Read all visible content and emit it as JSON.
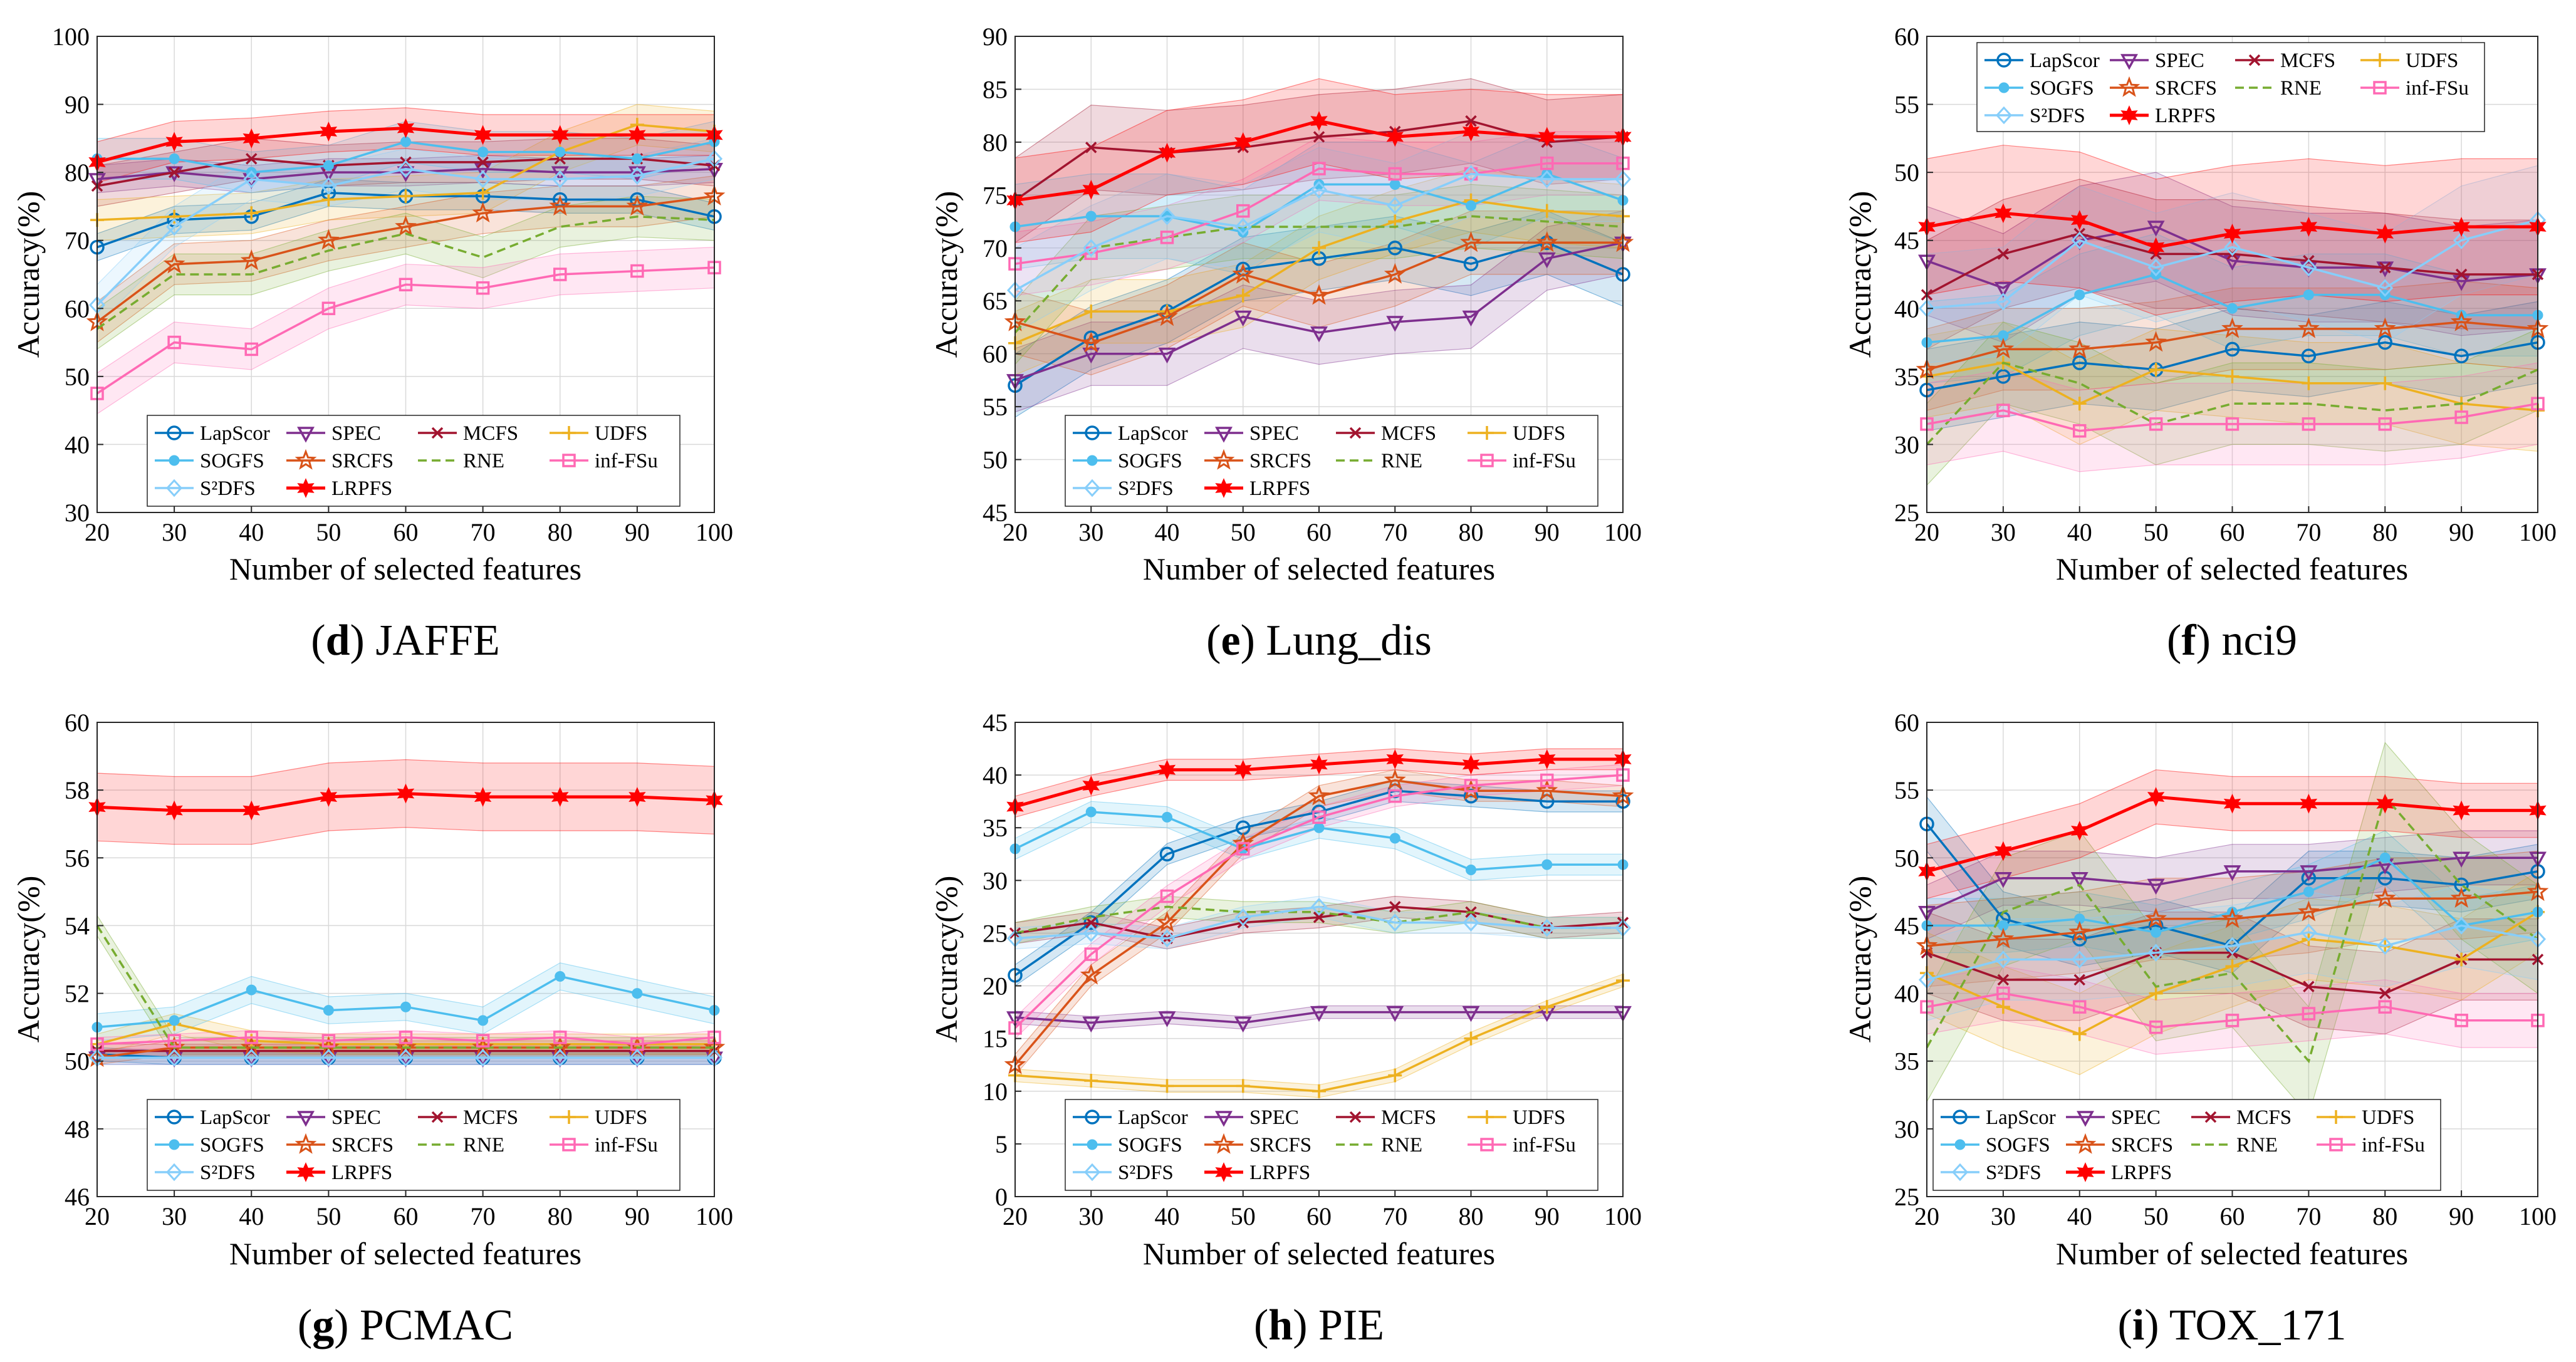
{
  "figure": {
    "x_label": "Number of selected features",
    "y_label": "Accuracy(%)",
    "legend_labels": [
      "LapScor",
      "SPEC",
      "MCFS",
      "UDFS",
      "SOGFS",
      "SRCFS",
      "RNE",
      "inf-FSu",
      "S²DFS",
      "LRPFS"
    ]
  },
  "chart_data": [
    {
      "type": "line",
      "caption_letter": "d",
      "caption_name": "JAFFE",
      "x": [
        20,
        30,
        40,
        50,
        60,
        70,
        80,
        90,
        100
      ],
      "ylim": [
        30,
        100
      ],
      "yticks": [
        30,
        40,
        50,
        60,
        70,
        80,
        90,
        100
      ],
      "legend_position": "bottom",
      "series": [
        {
          "name": "LapScor",
          "values": [
            69,
            73,
            73.5,
            77,
            76.5,
            76.5,
            76,
            76,
            73.5
          ],
          "band": 2
        },
        {
          "name": "SPEC",
          "values": [
            79,
            80,
            79,
            80,
            80,
            80.5,
            80,
            80,
            80.5
          ],
          "band": 2
        },
        {
          "name": "MCFS",
          "values": [
            78,
            80,
            82,
            81,
            81.5,
            81.5,
            82,
            82,
            81
          ],
          "band": 3
        },
        {
          "name": "UDFS",
          "values": [
            73,
            73.5,
            74,
            76,
            76.5,
            77,
            83,
            87,
            86
          ],
          "band": 3
        },
        {
          "name": "SOGFS",
          "values": [
            82,
            82,
            80,
            81,
            84.5,
            83,
            83,
            82,
            84.5
          ],
          "band": 3
        },
        {
          "name": "SRCFS",
          "values": [
            58,
            66.5,
            67,
            70,
            72,
            74,
            75,
            75,
            76.5
          ],
          "band": 3
        },
        {
          "name": "RNE",
          "values": [
            57,
            65,
            65,
            68.5,
            71,
            67.5,
            72,
            73.5,
            73
          ],
          "band": 3
        },
        {
          "name": "inf-FSu",
          "values": [
            47.5,
            55,
            54,
            60,
            63.5,
            63,
            65,
            65.5,
            66
          ],
          "band": 3
        },
        {
          "name": "S²DFS",
          "values": [
            60.5,
            72,
            79,
            78,
            80.5,
            79,
            79,
            79.5,
            82
          ],
          "band": 3
        },
        {
          "name": "LRPFS",
          "values": [
            81.5,
            84.5,
            85,
            86,
            86.5,
            85.5,
            85.5,
            85.5,
            85.5
          ],
          "band": 3
        }
      ]
    },
    {
      "type": "line",
      "caption_letter": "e",
      "caption_name": "Lung_dis",
      "x": [
        20,
        30,
        40,
        50,
        60,
        70,
        80,
        90,
        100
      ],
      "ylim": [
        45,
        90
      ],
      "yticks": [
        45,
        50,
        55,
        60,
        65,
        70,
        75,
        80,
        85,
        90
      ],
      "legend_position": "bottom",
      "series": [
        {
          "name": "LapScor",
          "values": [
            57,
            61.5,
            64,
            68,
            69,
            70,
            68.5,
            70.5,
            67.5
          ],
          "band": 3
        },
        {
          "name": "SPEC",
          "values": [
            57.5,
            60,
            60,
            63.5,
            62,
            63,
            63.5,
            69,
            70.5
          ],
          "band": 3
        },
        {
          "name": "MCFS",
          "values": [
            74.5,
            79.5,
            79,
            79.5,
            80.5,
            81,
            82,
            80,
            80.5
          ],
          "band": 4
        },
        {
          "name": "UDFS",
          "values": [
            61,
            64,
            64,
            65.5,
            70,
            72.5,
            74.5,
            73.5,
            73
          ],
          "band": 3
        },
        {
          "name": "SOGFS",
          "values": [
            72,
            73,
            73,
            71.5,
            76,
            76,
            74,
            77,
            74.5
          ],
          "band": 4
        },
        {
          "name": "SRCFS",
          "values": [
            63,
            61,
            63.5,
            67.5,
            65.5,
            67.5,
            70.5,
            70.5,
            70.5
          ],
          "band": 3
        },
        {
          "name": "RNE",
          "values": [
            62,
            70,
            71,
            72,
            72,
            72,
            73,
            72.5,
            72
          ],
          "band": 3
        },
        {
          "name": "inf-FSu",
          "values": [
            68.5,
            69.5,
            71,
            73.5,
            77.5,
            77,
            77,
            78,
            78
          ],
          "band": 3
        },
        {
          "name": "S²DFS",
          "values": [
            66,
            70,
            73,
            72,
            75.5,
            74,
            77,
            76.5,
            76.5
          ],
          "band": 4
        },
        {
          "name": "LRPFS",
          "values": [
            74.5,
            75.5,
            79,
            80,
            82,
            80.5,
            81,
            80.5,
            80.5
          ],
          "band": 4
        }
      ]
    },
    {
      "type": "line",
      "caption_letter": "f",
      "caption_name": "nci9",
      "x": [
        20,
        30,
        40,
        50,
        60,
        70,
        80,
        90,
        100
      ],
      "ylim": [
        25,
        60
      ],
      "yticks": [
        25,
        30,
        35,
        40,
        45,
        50,
        55,
        60
      ],
      "legend_position": "top",
      "series": [
        {
          "name": "LapScor",
          "values": [
            34,
            35,
            36,
            35.5,
            37,
            36.5,
            37.5,
            36.5,
            37.5
          ],
          "band": 3
        },
        {
          "name": "SPEC",
          "values": [
            43.5,
            41.5,
            45,
            46,
            43.5,
            43,
            43,
            42,
            42.5
          ],
          "band": 4
        },
        {
          "name": "MCFS",
          "values": [
            41,
            44,
            45.5,
            44,
            44,
            43.5,
            43,
            42.5,
            42.5
          ],
          "band": 4
        },
        {
          "name": "UDFS",
          "values": [
            35,
            36,
            33,
            35.5,
            35,
            34.5,
            34.5,
            33,
            32.5
          ],
          "band": 3
        },
        {
          "name": "SOGFS",
          "values": [
            37.5,
            38,
            41,
            42.5,
            40,
            41,
            41,
            39.5,
            39.5
          ],
          "band": 3
        },
        {
          "name": "SRCFS",
          "values": [
            35.5,
            37,
            37,
            37.5,
            38.5,
            38.5,
            38.5,
            39,
            38.5
          ],
          "band": 3
        },
        {
          "name": "RNE",
          "values": [
            30,
            36,
            34.5,
            31.5,
            33,
            33,
            32.5,
            33,
            35.5
          ],
          "band": 3
        },
        {
          "name": "inf-FSu",
          "values": [
            31.5,
            32.5,
            31,
            31.5,
            31.5,
            31.5,
            31.5,
            32,
            33
          ],
          "band": 3
        },
        {
          "name": "S²DFS",
          "values": [
            40,
            40.5,
            45,
            43,
            44.5,
            43,
            41.5,
            45,
            46.5
          ],
          "band": 4
        },
        {
          "name": "LRPFS",
          "values": [
            46,
            47,
            46.5,
            44.5,
            45.5,
            46,
            45.5,
            46,
            46
          ],
          "band": 5
        }
      ]
    },
    {
      "type": "line",
      "caption_letter": "g",
      "caption_name": "PCMAC",
      "x": [
        20,
        30,
        40,
        50,
        60,
        70,
        80,
        90,
        100
      ],
      "ylim": [
        46,
        60
      ],
      "yticks": [
        46,
        48,
        50,
        52,
        54,
        56,
        58,
        60
      ],
      "legend_position": "bottom",
      "series": [
        {
          "name": "LapScor",
          "values": [
            50.2,
            50.1,
            50.1,
            50.1,
            50.1,
            50.1,
            50.1,
            50.1,
            50.1
          ],
          "band": 0.2
        },
        {
          "name": "SPEC",
          "values": [
            50.1,
            50.1,
            50.1,
            50.1,
            50.1,
            50.1,
            50.1,
            50.1,
            50.1
          ],
          "band": 0.2
        },
        {
          "name": "MCFS",
          "values": [
            50.3,
            50.3,
            50.3,
            50.3,
            50.3,
            50.3,
            50.3,
            50.3,
            50.3
          ],
          "band": 0.2
        },
        {
          "name": "UDFS",
          "values": [
            50.5,
            51.1,
            50.6,
            50.5,
            50.5,
            50.5,
            50.5,
            50.5,
            50.5
          ],
          "band": 0.3
        },
        {
          "name": "SOGFS",
          "values": [
            51,
            51.2,
            52.1,
            51.5,
            51.6,
            51.2,
            52.5,
            52,
            51.5
          ],
          "band": 0.4
        },
        {
          "name": "SRCFS",
          "values": [
            50.1,
            50.4,
            50.4,
            50.4,
            50.4,
            50.4,
            50.4,
            50.4,
            50.4
          ],
          "band": 0.2
        },
        {
          "name": "RNE",
          "values": [
            54,
            50.4,
            50.4,
            50.4,
            50.4,
            50.4,
            50.4,
            50.4,
            50.4
          ],
          "band": 0.3
        },
        {
          "name": "inf-FSu",
          "values": [
            50.5,
            50.6,
            50.7,
            50.6,
            50.7,
            50.6,
            50.7,
            50.5,
            50.7
          ],
          "band": 0.2
        },
        {
          "name": "S²DFS",
          "values": [
            50.1,
            50.1,
            50.1,
            50.1,
            50.1,
            50.1,
            50.1,
            50.1,
            50.1
          ],
          "band": 0.2
        },
        {
          "name": "LRPFS",
          "values": [
            57.5,
            57.4,
            57.4,
            57.8,
            57.9,
            57.8,
            57.8,
            57.8,
            57.7
          ],
          "band": 1
        }
      ]
    },
    {
      "type": "line",
      "caption_letter": "h",
      "caption_name": "PIE",
      "x": [
        20,
        30,
        40,
        50,
        60,
        70,
        80,
        90,
        100
      ],
      "ylim": [
        0,
        45
      ],
      "yticks": [
        0,
        5,
        10,
        15,
        20,
        25,
        30,
        35,
        40,
        45
      ],
      "legend_position": "bottom",
      "series": [
        {
          "name": "LapScor",
          "values": [
            21,
            26,
            32.5,
            35,
            36.5,
            38.5,
            38,
            37.5,
            37.5
          ],
          "band": 1
        },
        {
          "name": "SPEC",
          "values": [
            17,
            16.5,
            17,
            16.5,
            17.5,
            17.5,
            17.5,
            17.5,
            17.5
          ],
          "band": 0.6
        },
        {
          "name": "MCFS",
          "values": [
            25,
            26,
            24.5,
            26,
            26.5,
            27.5,
            27,
            25.5,
            26
          ],
          "band": 1
        },
        {
          "name": "UDFS",
          "values": [
            11.5,
            11,
            10.5,
            10.5,
            10,
            11.5,
            15,
            18,
            20.5
          ],
          "band": 0.6
        },
        {
          "name": "SOGFS",
          "values": [
            33,
            36.5,
            36,
            33,
            35,
            34,
            31,
            31.5,
            31.5
          ],
          "band": 1
        },
        {
          "name": "SRCFS",
          "values": [
            12.5,
            21,
            26,
            33.5,
            38,
            39.5,
            38.5,
            38.5,
            38
          ],
          "band": 1
        },
        {
          "name": "RNE",
          "values": [
            25,
            26.5,
            27.5,
            27,
            27,
            26,
            27,
            25.5,
            25.5
          ],
          "band": 1
        },
        {
          "name": "inf-FSu",
          "values": [
            16,
            23,
            28.5,
            33,
            36,
            38,
            39,
            39.5,
            40
          ],
          "band": 1
        },
        {
          "name": "S²DFS",
          "values": [
            24.5,
            25,
            24.5,
            26.5,
            27.5,
            26,
            26,
            25.5,
            25.5
          ],
          "band": 1
        },
        {
          "name": "LRPFS",
          "values": [
            37,
            39,
            40.5,
            40.5,
            41,
            41.5,
            41,
            41.5,
            41.5
          ],
          "band": 1
        }
      ]
    },
    {
      "type": "line",
      "caption_letter": "i",
      "caption_name": "TOX_171",
      "x": [
        20,
        30,
        40,
        50,
        60,
        70,
        80,
        90,
        100
      ],
      "ylim": [
        25,
        60
      ],
      "yticks": [
        25,
        30,
        35,
        40,
        45,
        50,
        55,
        60
      ],
      "legend_position": "bottom-left",
      "series": [
        {
          "name": "LapScor",
          "values": [
            52.5,
            45.5,
            44,
            45,
            43.5,
            48.5,
            48.5,
            48,
            49
          ],
          "band": 2
        },
        {
          "name": "SPEC",
          "values": [
            46,
            48.5,
            48.5,
            48,
            49,
            49,
            49.5,
            50,
            50
          ],
          "band": 2
        },
        {
          "name": "MCFS",
          "values": [
            43,
            41,
            41,
            43,
            43,
            40.5,
            40,
            42.5,
            42.5
          ],
          "band": 3
        },
        {
          "name": "UDFS",
          "values": [
            41.5,
            39,
            37,
            40,
            42,
            44,
            43.5,
            42.5,
            46
          ],
          "band": 3
        },
        {
          "name": "SOGFS",
          "values": [
            45,
            45,
            45.5,
            44.5,
            46,
            47.5,
            50,
            45,
            46
          ],
          "band": 2
        },
        {
          "name": "SRCFS",
          "values": [
            43.5,
            44,
            44.5,
            45.5,
            45.5,
            46,
            47,
            47,
            47.5
          ],
          "band": 3
        },
        {
          "name": "RNE",
          "values": [
            36,
            46,
            48,
            40.5,
            41.5,
            35,
            54.5,
            48,
            44
          ],
          "band": 4
        },
        {
          "name": "inf-FSu",
          "values": [
            39,
            40,
            39,
            37.5,
            38,
            38.5,
            39,
            38,
            38
          ],
          "band": 2
        },
        {
          "name": "S²DFS",
          "values": [
            41,
            42.5,
            42.5,
            43,
            43.5,
            44.5,
            43.5,
            45,
            44
          ],
          "band": 3
        },
        {
          "name": "LRPFS",
          "values": [
            49,
            50.5,
            52,
            54.5,
            54,
            54,
            54,
            53.5,
            53.5
          ],
          "band": 2
        }
      ]
    }
  ],
  "style": {
    "series_colors": {
      "LapScor": "#0072BD",
      "SPEC": "#7E2F8E",
      "MCFS": "#A2142F",
      "UDFS": "#EDB120",
      "SOGFS": "#4DBEEE",
      "SRCFS": "#D95319",
      "RNE": "#77AC30",
      "inf-FSu": "#FF69B4",
      "S²DFS": "#87CEFA",
      "LRPFS": "#FF0000"
    },
    "series_markers": {
      "LapScor": "circle",
      "SPEC": "triangle-down",
      "MCFS": "x-mark",
      "UDFS": "plus",
      "SOGFS": "dot",
      "SRCFS": "star",
      "RNE": "none",
      "inf-FSu": "square",
      "S²DFS": "diamond",
      "LRPFS": "hexagram"
    },
    "grid_color": "#d9d9d9"
  }
}
